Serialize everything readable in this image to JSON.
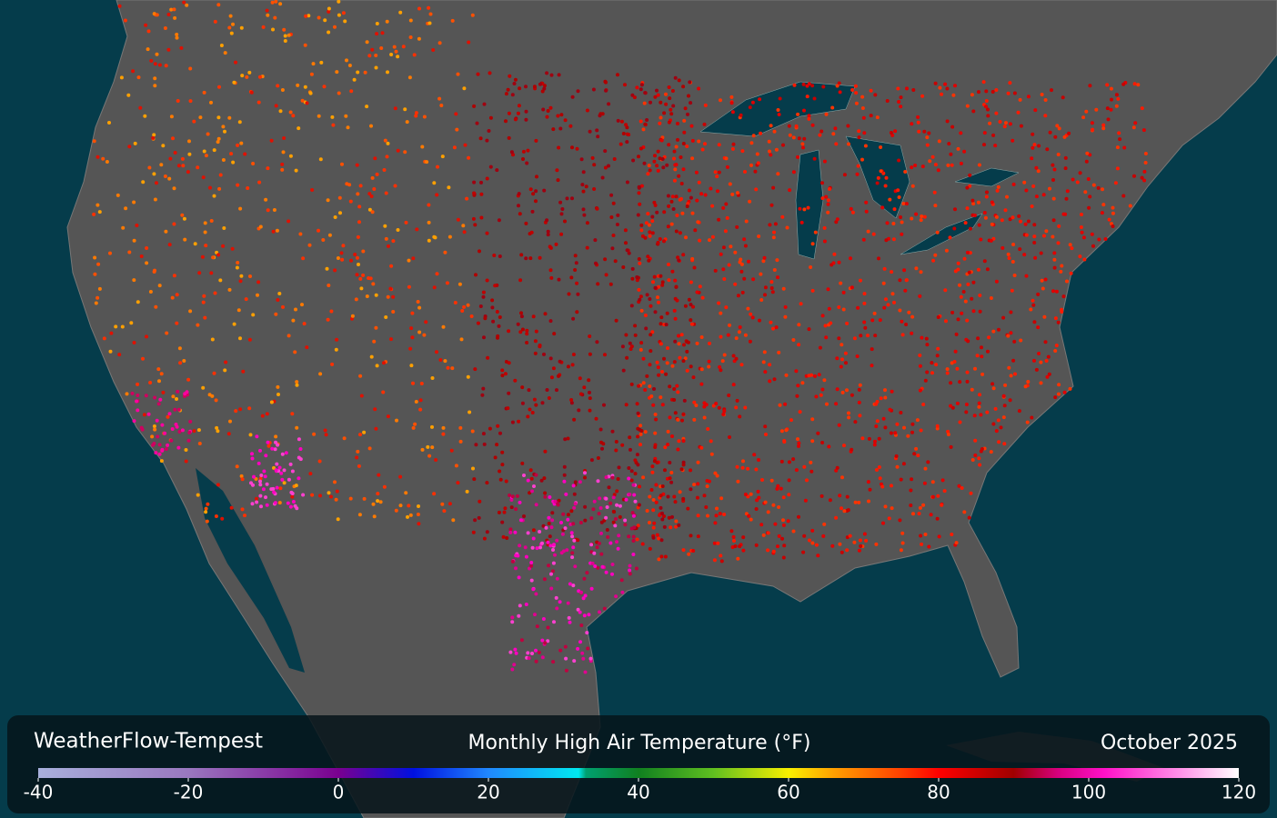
{
  "brand": "WeatherFlow-Tempest",
  "title": "Monthly High Air Temperature (°F)",
  "date": "October 2025",
  "colorbar": {
    "range": [
      -40,
      120
    ],
    "ticks": [
      -40,
      -20,
      0,
      20,
      40,
      60,
      80,
      100,
      120
    ],
    "stops": [
      {
        "value": -40,
        "color": "#a8b0dc"
      },
      {
        "value": -20,
        "color": "#9a78c0"
      },
      {
        "value": 0,
        "color": "#7a0090"
      },
      {
        "value": 10,
        "color": "#0010e0"
      },
      {
        "value": 20,
        "color": "#2088ff"
      },
      {
        "value": 32,
        "color": "#00e8f0"
      },
      {
        "value": 33,
        "color": "#00a070"
      },
      {
        "value": 40,
        "color": "#108020"
      },
      {
        "value": 50,
        "color": "#60c020"
      },
      {
        "value": 60,
        "color": "#f8f000"
      },
      {
        "value": 66,
        "color": "#ffa000"
      },
      {
        "value": 75,
        "color": "#ff4000"
      },
      {
        "value": 80,
        "color": "#ff0000"
      },
      {
        "value": 90,
        "color": "#a00000"
      },
      {
        "value": 96,
        "color": "#d80080"
      },
      {
        "value": 102,
        "color": "#ff10c8"
      },
      {
        "value": 112,
        "color": "#ff90e8"
      },
      {
        "value": 120,
        "color": "#ffffff"
      }
    ]
  }
}
